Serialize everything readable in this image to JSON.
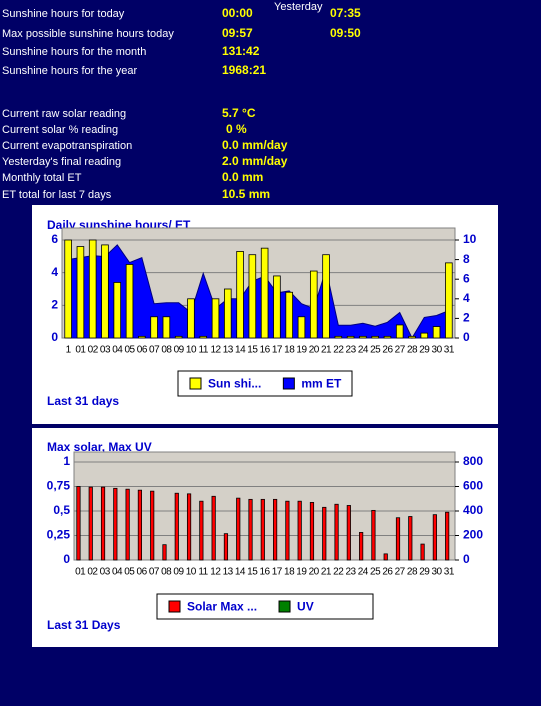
{
  "stats": {
    "yesterday_header": "Yesterday",
    "sunshine": [
      {
        "label": "Sunshine hours for today",
        "value": "00:00",
        "yesterday": "07:35"
      },
      {
        "label": "Max possible sunshine hours today",
        "value": "09:57",
        "yesterday": "09:50"
      },
      {
        "label": "Sunshine hours for the month",
        "value": "131:42"
      },
      {
        "label": "Sunshine hours for the year",
        "value": "1968:21"
      }
    ],
    "solar": [
      {
        "label": "Current raw solar reading",
        "value": "5.7 °C"
      },
      {
        "label": "Current solar % reading",
        "value": "0 %"
      },
      {
        "label": "Current evapotranspiration",
        "value": "0.0 mm/day"
      },
      {
        "label": "Yesterday's final reading",
        "value": "2.0 mm/day"
      },
      {
        "label": "Monthly total ET",
        "value": "0.0 mm"
      },
      {
        "label": "ET total for last 7 days",
        "value": "10.5 mm"
      }
    ]
  },
  "chart_data": [
    {
      "type": "bar",
      "title": "Daily sunshine hours/ ET",
      "footer": "Last 31 days",
      "categories": [
        "1",
        "01",
        "02",
        "03",
        "04",
        "05",
        "06",
        "07",
        "08",
        "09",
        "10",
        "11",
        "12",
        "13",
        "14",
        "15",
        "16",
        "17",
        "18",
        "19",
        "20",
        "21",
        "22",
        "23",
        "24",
        "25",
        "26",
        "27",
        "28",
        "29",
        "30",
        "31"
      ],
      "series": [
        {
          "name": "Sun shi...",
          "color": "#ffff00",
          "values": [
            6.0,
            5.6,
            6.0,
            5.7,
            3.4,
            4.5,
            0.1,
            1.3,
            1.3,
            0.1,
            2.4,
            0.1,
            2.4,
            3.0,
            5.3,
            5.1,
            5.5,
            3.8,
            2.8,
            1.3,
            4.1,
            5.1,
            0.1,
            0.1,
            0.1,
            0.1,
            0.1,
            0.8,
            0.1,
            0.3,
            0.7,
            4.6
          ]
        },
        {
          "name": "mm ET",
          "color": "#0000ff",
          "type": "area",
          "axis": "y2",
          "values": [
            8.0,
            8.2,
            8.4,
            8.3,
            9.5,
            7.7,
            8.2,
            3.5,
            3.6,
            3.6,
            2.6,
            6.6,
            3.0,
            4.0,
            4.0,
            5.8,
            6.3,
            4.6,
            4.8,
            3.5,
            3.0,
            7.0,
            1.3,
            1.3,
            1.5,
            1.2,
            1.6,
            2.6,
            0.0,
            2.1,
            2.3,
            2.8
          ]
        }
      ],
      "ylim": [
        0,
        6
      ],
      "yticks": [
        0,
        2,
        4,
        6
      ],
      "y2lim": [
        0,
        10
      ],
      "y2ticks": [
        0,
        2,
        4,
        6,
        8,
        10
      ],
      "grid": true
    },
    {
      "type": "bar",
      "title": "Max solar, Max UV",
      "footer": "Last 31 Days",
      "categories": [
        "01",
        "02",
        "03",
        "04",
        "05",
        "06",
        "07",
        "08",
        "09",
        "10",
        "11",
        "12",
        "13",
        "14",
        "15",
        "16",
        "17",
        "18",
        "19",
        "20",
        "21",
        "22",
        "23",
        "24",
        "25",
        "26",
        "27",
        "28",
        "29",
        "30",
        "31"
      ],
      "series": [
        {
          "name": "Solar Max ...",
          "color": "#ff0000",
          "axis": "y2",
          "values": [
            600,
            595,
            595,
            585,
            578,
            570,
            562,
            125,
            545,
            540,
            480,
            520,
            215,
            505,
            495,
            495,
            495,
            480,
            480,
            470,
            430,
            455,
            445,
            225,
            405,
            50,
            345,
            355,
            130,
            370,
            390
          ]
        },
        {
          "name": "UV",
          "color": "#008000",
          "values": [
            0,
            0,
            0,
            0,
            0,
            0,
            0,
            0,
            0,
            0,
            0,
            0,
            0,
            0,
            0,
            0,
            0,
            0,
            0,
            0,
            0,
            0,
            0,
            0,
            0,
            0,
            0,
            0,
            0,
            0,
            0
          ]
        }
      ],
      "ylim": [
        0,
        1
      ],
      "yticks": [
        0,
        {
          "value": 0.25,
          "label": "0,25"
        },
        {
          "value": 0.5,
          "label": "0,5"
        },
        {
          "value": 0.75,
          "label": "0,75"
        },
        1
      ],
      "y2lim": [
        0,
        800
      ],
      "y2ticks": [
        0,
        200,
        400,
        600,
        800
      ],
      "grid": true
    }
  ]
}
